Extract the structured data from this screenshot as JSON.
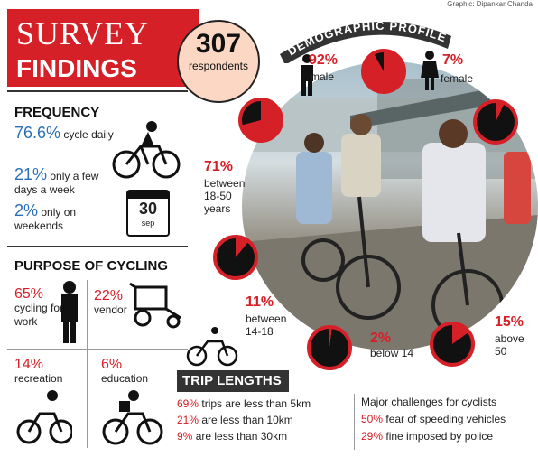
{
  "credit": "Graphic: Dipankar Chanda",
  "title": {
    "line1": "SURVEY",
    "line2": "FINDINGS"
  },
  "respondents": {
    "count": "307",
    "label": "respondents"
  },
  "demographic_banner": "DEMOGRAPHIC PROFILE",
  "frequency": {
    "heading": "FREQUENCY",
    "items": [
      {
        "value": "76.6%",
        "text": "cycle daily"
      },
      {
        "value": "21%",
        "text": "only a few days a week"
      },
      {
        "value": "2%",
        "text": "only on weekends"
      }
    ],
    "calendar": {
      "number": "30",
      "sub": "sep"
    }
  },
  "purpose": {
    "heading": "PURPOSE OF CYCLING",
    "items": [
      {
        "value": "65%",
        "text": "cycling for work"
      },
      {
        "value": "22%",
        "text": "vendor"
      },
      {
        "value": "14%",
        "text": "recreation"
      },
      {
        "value": "6%",
        "text": "education"
      }
    ]
  },
  "demographics": {
    "male": {
      "value": "92%",
      "label": "male",
      "fraction": 0.92
    },
    "female": {
      "value": "7%",
      "label": "female",
      "fraction": 0.07
    },
    "age_18_50": {
      "value": "71%",
      "label": "between 18-50 years",
      "fraction": 0.71
    },
    "age_14_18": {
      "value": "11%",
      "label": "between 14-18",
      "fraction": 0.11
    },
    "below_14": {
      "value": "2%",
      "label": "below 14",
      "fraction": 0.02
    },
    "above_50": {
      "value": "15%",
      "label": "above 50",
      "fraction": 0.15
    }
  },
  "trip_lengths": {
    "heading": "TRIP LENGTHS",
    "items": [
      {
        "value": "69%",
        "text": "trips are less than 5km"
      },
      {
        "value": "21%",
        "text": "are less than 10km"
      },
      {
        "value": "9%",
        "text": "are less than 30km"
      }
    ]
  },
  "challenges": {
    "heading": "Major challenges for cyclists",
    "items": [
      {
        "value": "50%",
        "text": "fear of speeding vehicles"
      },
      {
        "value": "29%",
        "text": "fine imposed by police"
      }
    ]
  },
  "colors": {
    "accent_red": "#d62027",
    "accent_blue": "#2a6fb7",
    "pie_dark": "#111111"
  }
}
